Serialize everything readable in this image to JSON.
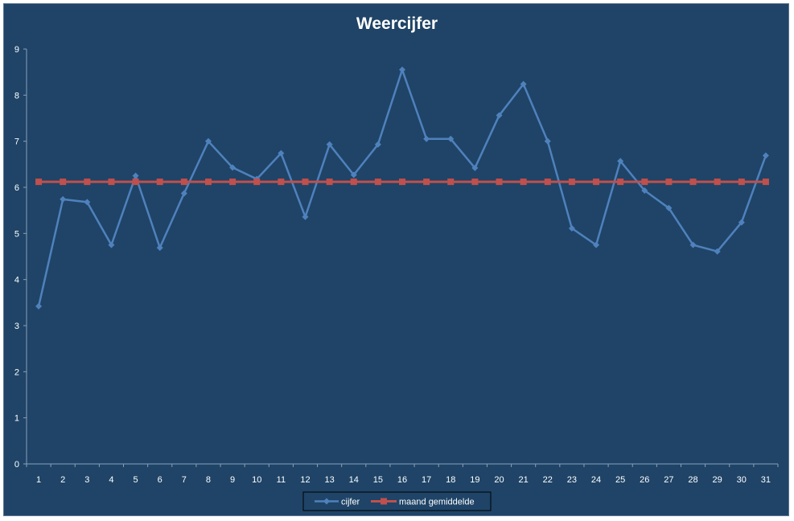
{
  "chart_data": {
    "type": "line",
    "title": "Weercijfer",
    "xlabel": "",
    "ylabel": "",
    "categories": [
      "1",
      "2",
      "3",
      "4",
      "5",
      "6",
      "7",
      "8",
      "9",
      "10",
      "11",
      "12",
      "13",
      "14",
      "15",
      "16",
      "17",
      "18",
      "19",
      "20",
      "21",
      "22",
      "23",
      "24",
      "25",
      "26",
      "27",
      "28",
      "29",
      "30",
      "31"
    ],
    "ylim": [
      0,
      9
    ],
    "yticks": [
      "0",
      "1",
      "2",
      "3",
      "4",
      "5",
      "6",
      "7",
      "8",
      "9"
    ],
    "grid": false,
    "legend_position": "bottom",
    "series": [
      {
        "name": "cijfer",
        "color": "#4f81bd",
        "marker": "diamond",
        "values": [
          3.42,
          5.74,
          5.68,
          4.75,
          6.25,
          4.69,
          5.87,
          7.0,
          6.43,
          6.18,
          6.74,
          5.36,
          6.93,
          6.27,
          6.93,
          8.55,
          7.05,
          7.05,
          6.42,
          7.56,
          8.24,
          7.0,
          5.11,
          4.75,
          6.57,
          5.93,
          5.55,
          4.75,
          4.61,
          5.24,
          6.69
        ]
      },
      {
        "name": "maand gemiddelde",
        "color": "#c0504d",
        "marker": "square",
        "values": [
          6.12,
          6.12,
          6.12,
          6.12,
          6.12,
          6.12,
          6.12,
          6.12,
          6.12,
          6.12,
          6.12,
          6.12,
          6.12,
          6.12,
          6.12,
          6.12,
          6.12,
          6.12,
          6.12,
          6.12,
          6.12,
          6.12,
          6.12,
          6.12,
          6.12,
          6.12,
          6.12,
          6.12,
          6.12,
          6.12,
          6.12
        ]
      }
    ]
  }
}
